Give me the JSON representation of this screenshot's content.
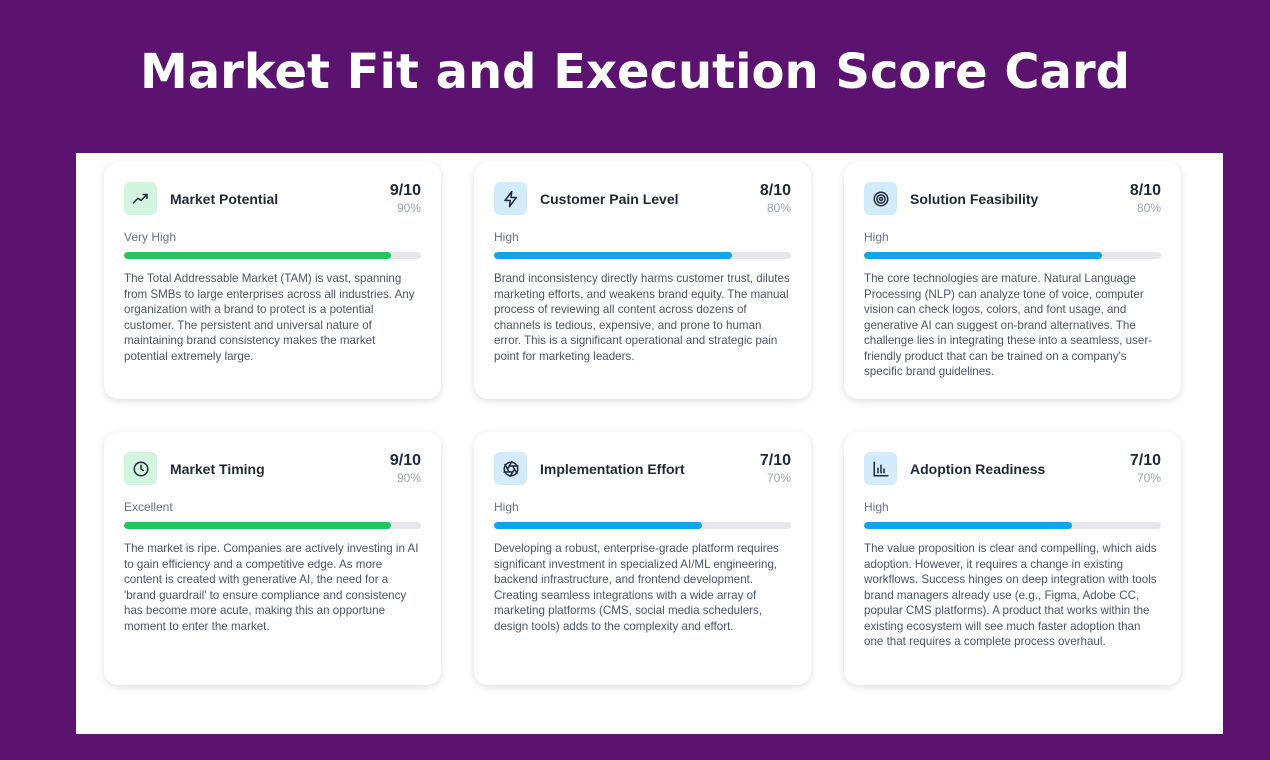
{
  "title": "Market Fit and Execution Score Card",
  "colors": {
    "background": "#5b136f",
    "green": "#22c55e",
    "blue": "#0ea5e9",
    "green_bg": "#d1f5de",
    "blue_bg": "#d3ecfb"
  },
  "cards": [
    {
      "title": "Market Potential",
      "icon": "trending-up-icon",
      "score": "9/10",
      "percent": "90%",
      "value": 0.9,
      "level": "Very High",
      "color": "green",
      "description": "The Total Addressable Market (TAM) is vast, spanning from SMBs to large enterprises across all industries. Any organization with a brand to protect is a potential customer. The persistent and universal nature of maintaining brand consistency makes the market potential extremely large."
    },
    {
      "title": "Customer Pain Level",
      "icon": "lightning-icon",
      "score": "8/10",
      "percent": "80%",
      "value": 0.8,
      "level": "High",
      "color": "blue",
      "description": "Brand inconsistency directly harms customer trust, dilutes marketing efforts, and weakens brand equity. The manual process of reviewing all content across dozens of channels is tedious, expensive, and prone to human error. This is a significant operational and strategic pain point for marketing leaders."
    },
    {
      "title": "Solution Feasibility",
      "icon": "target-icon",
      "score": "8/10",
      "percent": "80%",
      "value": 0.8,
      "level": "High",
      "color": "blue",
      "description": "The core technologies are mature. Natural Language Processing (NLP) can analyze tone of voice, computer vision can check logos, colors, and font usage, and generative AI can suggest on-brand alternatives. The challenge lies in integrating these into a seamless, user-friendly product that can be trained on a company's specific brand guidelines."
    },
    {
      "title": "Market Timing",
      "icon": "clock-icon",
      "score": "9/10",
      "percent": "90%",
      "value": 0.9,
      "level": "Excellent",
      "color": "green",
      "description": "The market is ripe. Companies are actively investing in AI to gain efficiency and a competitive edge. As more content is created with generative AI, the need for a 'brand guardrail' to ensure compliance and consistency has become more acute, making this an opportune moment to enter the market."
    },
    {
      "title": "Implementation Effort",
      "icon": "aperture-icon",
      "score": "7/10",
      "percent": "70%",
      "value": 0.7,
      "level": "High",
      "color": "blue",
      "description": "Developing a robust, enterprise-grade platform requires significant investment in specialized AI/ML engineering, backend infrastructure, and frontend development. Creating seamless integrations with a wide array of marketing platforms (CMS, social media schedulers, design tools) adds to the complexity and effort."
    },
    {
      "title": "Adoption Readiness",
      "icon": "bar-chart-icon",
      "score": "7/10",
      "percent": "70%",
      "value": 0.7,
      "level": "High",
      "color": "blue",
      "description": "The value proposition is clear and compelling, which aids adoption. However, it requires a change in existing workflows. Success hinges on deep integration with tools brand managers already use (e.g., Figma, Adobe CC, popular CMS platforms). A product that works within the existing ecosystem will see much faster adoption than one that requires a complete process overhaul."
    }
  ]
}
